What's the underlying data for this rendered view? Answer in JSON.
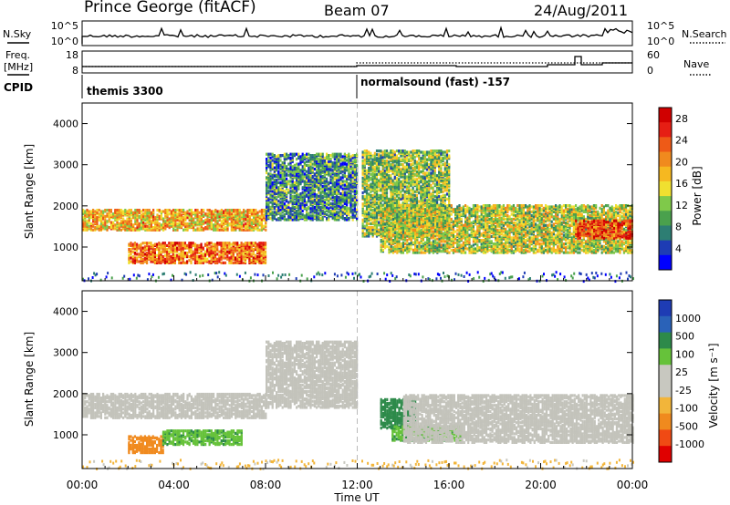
{
  "header": {
    "station": "Prince George (fitACF)",
    "beam": "Beam 07",
    "date": "24/Aug/2011"
  },
  "top_panels": {
    "nsky_label": "N.Sky",
    "nsky_ticks": [
      "10^5",
      "10^0"
    ],
    "nsearch_label": "N.Search",
    "nsearch_ticks": [
      "10^5",
      "10^0"
    ],
    "freq_label_1": "Freq.",
    "freq_label_2": "[MHz]",
    "freq_ticks": [
      "18",
      "8"
    ],
    "nave_label": "Nave",
    "nave_ticks": [
      "60",
      "0"
    ],
    "cpid_label": "CPID",
    "cpid_modes": [
      "themis 3300",
      "normalsound (fast) -157"
    ]
  },
  "colors": {
    "power": [
      "#0000ff",
      "#1e3cb4",
      "#2d7e73",
      "#4aa14d",
      "#7fc94a",
      "#f0e030",
      "#f6b820",
      "#f08a1e",
      "#ee5a17",
      "#e61e14",
      "#d00000"
    ],
    "velocity": [
      "#1e3cb4",
      "#2a62b8",
      "#2d8a4a",
      "#66c23a",
      "#c8c8c0",
      "#c8c8c0",
      "#f2b53a",
      "#f08a1e",
      "#f04a14",
      "#e00000"
    ],
    "ground_scatter": "#c3c3bb"
  },
  "chart_data": [
    {
      "type": "heatmap",
      "name": "power",
      "ylabel": "Slant Range [km]",
      "xlabel": "Time UT",
      "xlim": [
        0,
        24
      ],
      "ylim": [
        180,
        4500
      ],
      "x_ticks": [
        "00:00",
        "04:00",
        "08:00",
        "12:00",
        "16:00",
        "20:00",
        "00:00"
      ],
      "y_ticks": [
        1000,
        2000,
        3000,
        4000
      ],
      "colorbar_label": "Power [dB]",
      "colorbar_ticks": [
        "4",
        "8",
        "12",
        "16",
        "20",
        "24",
        "28"
      ],
      "colorbar_range": [
        0,
        30
      ],
      "regions": [
        {
          "x": [
            0.0,
            8.0
          ],
          "y": [
            1450,
            1950
          ],
          "level": 18
        },
        {
          "x": [
            2.0,
            8.0
          ],
          "y": [
            650,
            1150
          ],
          "level": 22
        },
        {
          "x": [
            8.0,
            12.0
          ],
          "y": [
            1700,
            3300
          ],
          "level": 8
        },
        {
          "x": [
            12.2,
            16.0
          ],
          "y": [
            1300,
            3400
          ],
          "level": 12
        },
        {
          "x": [
            13.0,
            24.0
          ],
          "y": [
            900,
            2050
          ],
          "level": 14
        },
        {
          "x": [
            21.5,
            24.0
          ],
          "y": [
            1250,
            1700
          ],
          "level": 24
        }
      ]
    },
    {
      "type": "heatmap",
      "name": "velocity",
      "ylabel": "Slant Range [km]",
      "xlabel": "Time UT",
      "xlim": [
        0,
        24
      ],
      "ylim": [
        180,
        4500
      ],
      "x_ticks": [
        "00:00",
        "04:00",
        "08:00",
        "12:00",
        "16:00",
        "20:00",
        "00:00"
      ],
      "y_ticks": [
        1000,
        2000,
        3000,
        4000
      ],
      "colorbar_label": "Velocity [m s⁻¹]",
      "colorbar_ticks": [
        "1000",
        "500",
        "100",
        "25",
        "-25",
        "-100",
        "-500",
        "-1000"
      ],
      "regions": [
        {
          "x": [
            0.0,
            8.0
          ],
          "y": [
            1450,
            2050
          ],
          "velocity": 0,
          "ground_scatter": true
        },
        {
          "x": [
            2.0,
            3.5
          ],
          "y": [
            600,
            1000
          ],
          "velocity": -150
        },
        {
          "x": [
            3.5,
            7.0
          ],
          "y": [
            800,
            1150
          ],
          "velocity": 80
        },
        {
          "x": [
            8.0,
            12.0
          ],
          "y": [
            1700,
            3300
          ],
          "velocity": 0,
          "ground_scatter": true
        },
        {
          "x": [
            13.0,
            14.5
          ],
          "y": [
            1200,
            1900
          ],
          "velocity": 300
        },
        {
          "x": [
            13.5,
            16.5
          ],
          "y": [
            900,
            1250
          ],
          "velocity": 80
        },
        {
          "x": [
            14.0,
            24.0
          ],
          "y": [
            850,
            2000
          ],
          "velocity": 0,
          "ground_scatter": true
        }
      ]
    }
  ]
}
